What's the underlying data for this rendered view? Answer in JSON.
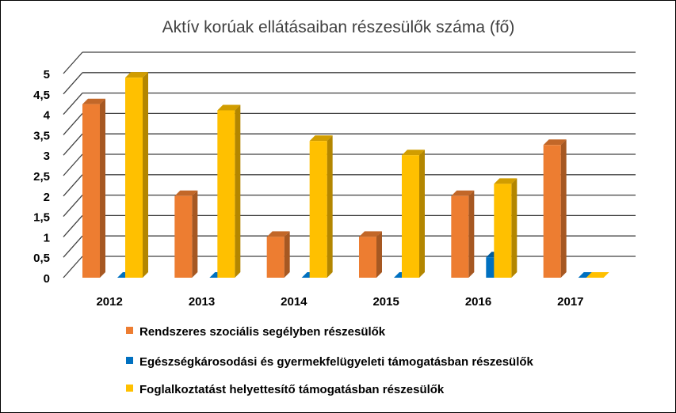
{
  "chart_data": {
    "type": "bar",
    "title": "Aktív korúak ellátásaiban részesülők száma (fő)",
    "categories": [
      "2012",
      "2013",
      "2014",
      "2015",
      "2016",
      "2017"
    ],
    "series": [
      {
        "name": "Rendszeres szociális segélyben részesülők",
        "color": "#ED7D31",
        "values": [
          4.25,
          2.0,
          1.0,
          1.0,
          2.0,
          3.25
        ]
      },
      {
        "name": "Egészségkárosodási és gyermekfelügyeleti támogatásban részesülők",
        "color": "#0070C0",
        "values": [
          0,
          0,
          0,
          0,
          0.5,
          0
        ]
      },
      {
        "name": "Foglalkoztatást helyettesítő támogatásban részesülők",
        "color": "#FFC000",
        "values": [
          4.9,
          4.1,
          3.35,
          3.0,
          2.3,
          0
        ]
      }
    ],
    "yticks": [
      "0",
      "0,5",
      "1",
      "1,5",
      "2",
      "2,5",
      "3",
      "3,5",
      "4",
      "4,5",
      "5"
    ],
    "ylim": [
      0,
      5
    ],
    "grid": true,
    "legend": "bottom"
  }
}
